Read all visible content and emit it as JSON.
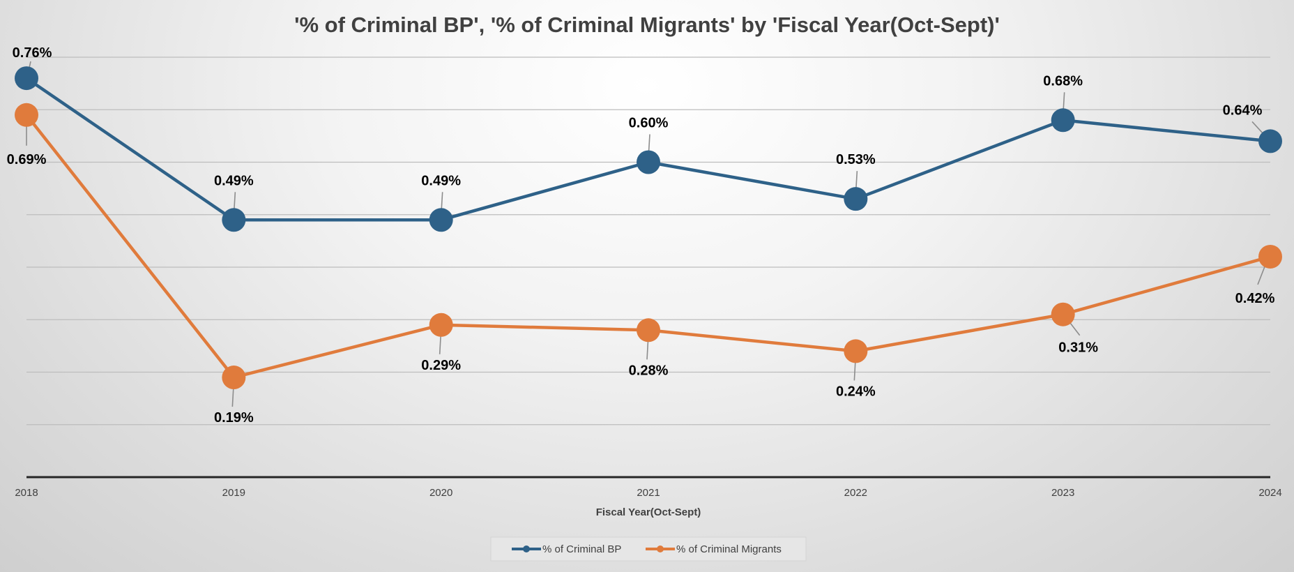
{
  "chart_data": {
    "type": "line",
    "title": "'% of Criminal BP', '% of Criminal Migrants' by 'Fiscal Year(Oct-Sept)'",
    "xlabel": "Fiscal Year(Oct-Sept)",
    "ylabel": "",
    "categories": [
      "2018",
      "2019",
      "2020",
      "2021",
      "2022",
      "2023",
      "2024"
    ],
    "ylim": [
      0.0,
      0.8
    ],
    "grid": true,
    "legend_position": "bottom",
    "series": [
      {
        "name": "% of Criminal BP",
        "color": "#2e6188",
        "values": [
          0.76,
          0.49,
          0.49,
          0.6,
          0.53,
          0.68,
          0.64
        ],
        "labels": [
          "0.76%",
          "0.49%",
          "0.49%",
          "0.60%",
          "0.53%",
          "0.68%",
          "0.64%"
        ]
      },
      {
        "name": "% of Criminal Migrants",
        "color": "#e07b3c",
        "values": [
          0.69,
          0.19,
          0.29,
          0.28,
          0.24,
          0.31,
          0.42
        ],
        "labels": [
          "0.69%",
          "0.19%",
          "0.29%",
          "0.28%",
          "0.24%",
          "0.31%",
          "0.42%"
        ]
      }
    ]
  }
}
